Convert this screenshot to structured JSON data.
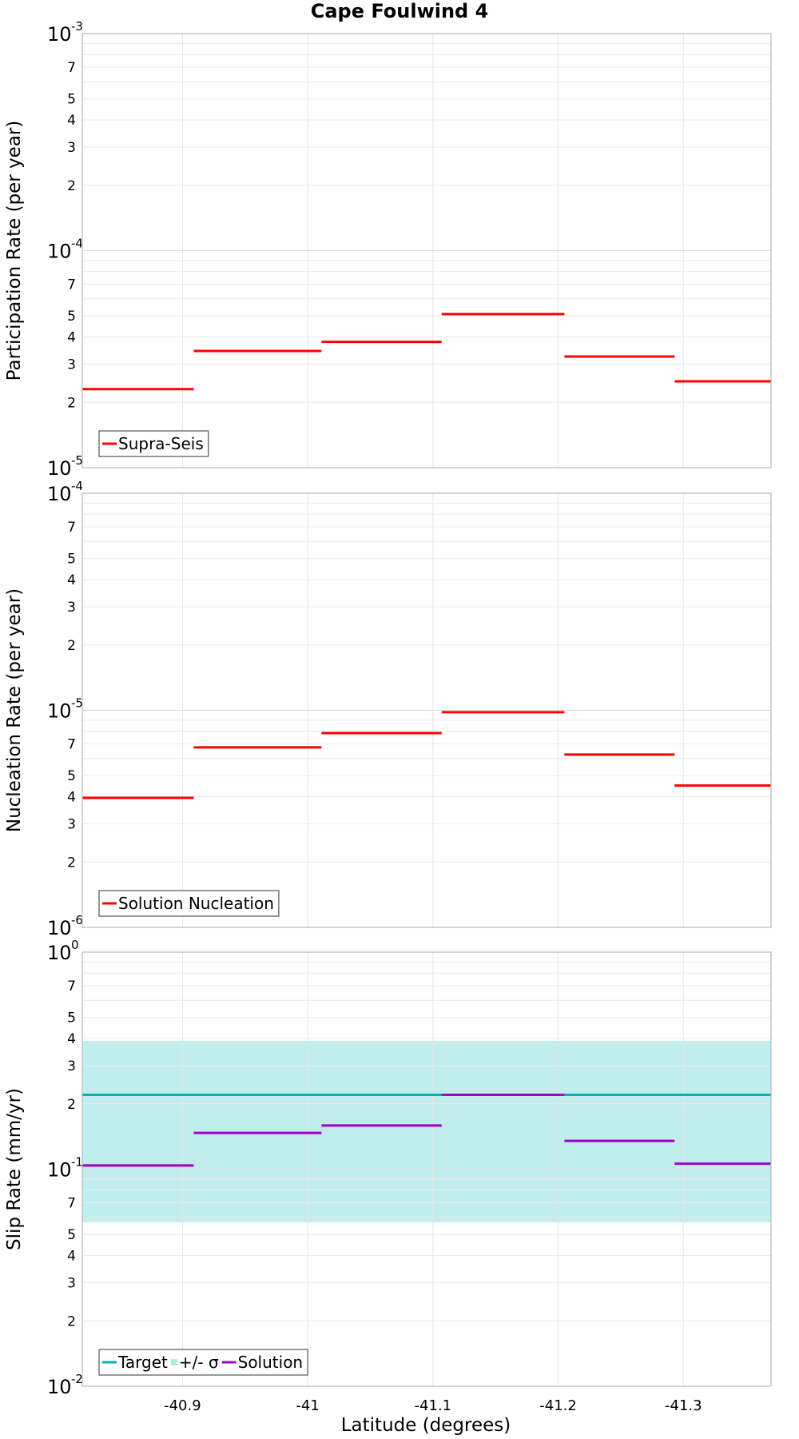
{
  "chart_data": {
    "type": "line",
    "title": "Cape Foulwind 4",
    "xlabel": "Latitude (degrees)",
    "xlim": [
      -40.82,
      -41.37
    ],
    "x_ticks": [
      {
        "value": -40.9,
        "label": "-40.9"
      },
      {
        "value": -41.0,
        "label": "-41"
      },
      {
        "value": -41.1,
        "label": "-41.1"
      },
      {
        "value": -41.2,
        "label": "-41.2"
      },
      {
        "value": -41.3,
        "label": "-41.3"
      }
    ],
    "grid": true,
    "legend_position": "bottom-left",
    "panels": [
      {
        "ylabel": "Participation Rate (per year)",
        "yscale": "log",
        "ylim": [
          1e-05,
          0.001
        ],
        "major_ticks": [
          {
            "value": 0.001,
            "base": "10",
            "exp": "-3"
          },
          {
            "value": 0.0001,
            "base": "10",
            "exp": "-4"
          },
          {
            "value": 1e-05,
            "base": "10",
            "exp": "-5"
          }
        ],
        "series": [
          {
            "name": "Supra-Seis",
            "color": "#ff0000",
            "style": "line",
            "segments": [
              {
                "x0": -40.82,
                "x1": -40.909,
                "y": 2.3e-05
              },
              {
                "x0": -40.909,
                "x1": -41.011,
                "y": 3.45e-05
              },
              {
                "x0": -41.011,
                "x1": -41.107,
                "y": 3.8e-05
              },
              {
                "x0": -41.107,
                "x1": -41.205,
                "y": 5.1e-05
              },
              {
                "x0": -41.205,
                "x1": -41.293,
                "y": 3.25e-05
              },
              {
                "x0": -41.293,
                "x1": -41.37,
                "y": 2.5e-05
              }
            ]
          }
        ]
      },
      {
        "ylabel": "Nucleation Rate (per year)",
        "yscale": "log",
        "ylim": [
          1e-06,
          0.0001
        ],
        "major_ticks": [
          {
            "value": 0.0001,
            "base": "10",
            "exp": "-4"
          },
          {
            "value": 1e-05,
            "base": "10",
            "exp": "-5"
          },
          {
            "value": 1e-06,
            "base": "10",
            "exp": "-6"
          }
        ],
        "series": [
          {
            "name": "Solution Nucleation",
            "color": "#ff0000",
            "style": "line",
            "segments": [
              {
                "x0": -40.82,
                "x1": -40.909,
                "y": 3.95e-06
              },
              {
                "x0": -40.909,
                "x1": -41.011,
                "y": 6.75e-06
              },
              {
                "x0": -41.011,
                "x1": -41.107,
                "y": 7.85e-06
              },
              {
                "x0": -41.107,
                "x1": -41.205,
                "y": 9.8e-06
              },
              {
                "x0": -41.205,
                "x1": -41.293,
                "y": 6.25e-06
              },
              {
                "x0": -41.293,
                "x1": -41.37,
                "y": 4.5e-06
              }
            ]
          }
        ]
      },
      {
        "ylabel": "Slip Rate (mm/yr)",
        "yscale": "log",
        "ylim": [
          0.01,
          1.0
        ],
        "major_ticks": [
          {
            "value": 1.0,
            "base": "10",
            "exp": "0"
          },
          {
            "value": 0.1,
            "base": "10",
            "exp": "-1"
          },
          {
            "value": 0.01,
            "base": "10",
            "exp": "-2"
          }
        ],
        "series": [
          {
            "name": "Target",
            "color": "#00b3b3",
            "style": "line",
            "segments": [
              {
                "x0": -40.82,
                "x1": -41.37,
                "y": 0.22
              }
            ]
          },
          {
            "name": "+/- σ",
            "color": "#b2e8e8",
            "style": "band",
            "lower": 0.057,
            "upper": 0.39,
            "x0": -40.82,
            "x1": -41.37
          },
          {
            "name": "Solution",
            "color": "#a300c8",
            "style": "line",
            "segments": [
              {
                "x0": -40.82,
                "x1": -40.909,
                "y": 0.104
              },
              {
                "x0": -40.909,
                "x1": -41.011,
                "y": 0.147
              },
              {
                "x0": -41.011,
                "x1": -41.107,
                "y": 0.159
              },
              {
                "x0": -41.107,
                "x1": -41.205,
                "y": 0.22
              },
              {
                "x0": -41.205,
                "x1": -41.293,
                "y": 0.135
              },
              {
                "x0": -41.293,
                "x1": -41.37,
                "y": 0.106
              }
            ]
          }
        ]
      }
    ]
  }
}
